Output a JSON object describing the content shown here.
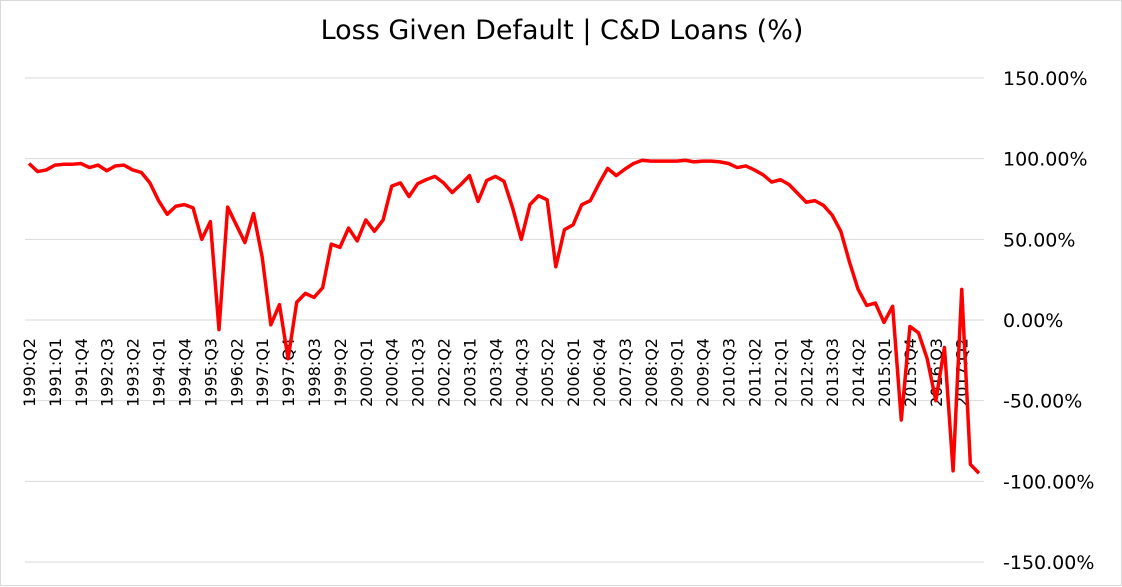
{
  "chart_data": {
    "type": "line",
    "title": "Loss Given Default | C&D Loans (%)",
    "xlabel": "",
    "ylabel": "",
    "ylim": [
      -150,
      150
    ],
    "y_ticks": [
      "150.00%",
      "100.00%",
      "50.00%",
      "0.00%",
      "-50.00%",
      "-100.00%",
      "-150.00%"
    ],
    "y_tick_values": [
      150,
      100,
      50,
      0,
      -50,
      -100,
      -150
    ],
    "x_tick_labels": [
      "1990:Q2",
      "1991:Q1",
      "1991:Q4",
      "1992:Q3",
      "1993:Q2",
      "1994:Q1",
      "1994:Q4",
      "1995:Q3",
      "1996:Q2",
      "1997:Q1",
      "1997:Q4",
      "1998:Q3",
      "1999:Q2",
      "2000:Q1",
      "2000:Q4",
      "2001:Q3",
      "2002:Q2",
      "2003:Q1",
      "2003:Q4",
      "2004:Q3",
      "2005:Q2",
      "2006:Q1",
      "2006:Q4",
      "2007:Q3",
      "2008:Q2",
      "2009:Q1",
      "2009:Q4",
      "2010:Q3",
      "2011:Q2",
      "2012:Q1",
      "2012:Q4",
      "2013:Q3",
      "2014:Q2",
      "2015:Q1",
      "2015:Q4",
      "2016:Q3",
      "2017:Q2"
    ],
    "x_start": "1990:Q2",
    "x_end": "2017:Q3",
    "grid": true,
    "legend": "none",
    "line_color": "#ff0000",
    "series": [
      {
        "values": [
          97,
          92,
          93,
          96,
          96.5,
          96.5,
          97,
          94.5,
          96,
          92.5,
          95.5,
          96,
          93,
          91.5,
          85,
          74,
          65.5,
          70.5,
          71.5,
          69.5,
          50,
          61,
          -6,
          70,
          59,
          48,
          66,
          39,
          -3,
          9.5,
          -24,
          11,
          16.5,
          14,
          20,
          47,
          45,
          57,
          49,
          62,
          55,
          62,
          83,
          85,
          76.5,
          84.5,
          87,
          89,
          85,
          79,
          84,
          89.5,
          73.5,
          86.5,
          89,
          86,
          69.5,
          50,
          71.5,
          77,
          74.5,
          33,
          56,
          59,
          71.5,
          74,
          84.5,
          94,
          89.5,
          93.5,
          97,
          99,
          98.5,
          98.5,
          98.5,
          98.5,
          99,
          98,
          98.5,
          98.5,
          98,
          97,
          94.5,
          95.5,
          93,
          90,
          85.5,
          87,
          84,
          78.5,
          73,
          74,
          71,
          65,
          55,
          36,
          19,
          9,
          10.5,
          -1.5,
          8.5,
          -62,
          -4,
          -8,
          -24,
          -50,
          -17,
          -93.5,
          19,
          -89.5,
          -95
        ]
      }
    ]
  }
}
